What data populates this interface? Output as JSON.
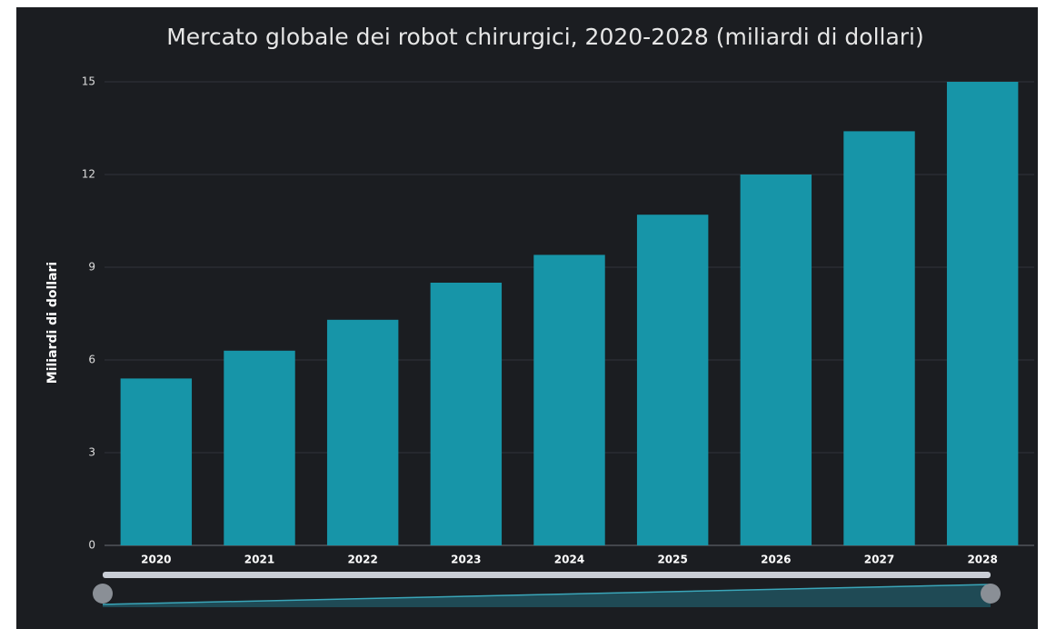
{
  "chart_data": {
    "type": "bar",
    "title": "Mercato globale dei robot chirurgici, 2020-2028 (miliardi di dollari)",
    "y_label": "Miliardi di dollari",
    "categories": [
      "2020",
      "2021",
      "2022",
      "2023",
      "2024",
      "2025",
      "2026",
      "2027",
      "2028"
    ],
    "values": [
      5.4,
      6.3,
      7.3,
      8.5,
      9.4,
      10.7,
      12.0,
      13.4,
      15.0
    ],
    "color": "#1795a8",
    "ylim": [
      0,
      15
    ],
    "yticks": [
      0,
      3,
      6,
      9,
      12,
      15
    ],
    "grid": true
  }
}
